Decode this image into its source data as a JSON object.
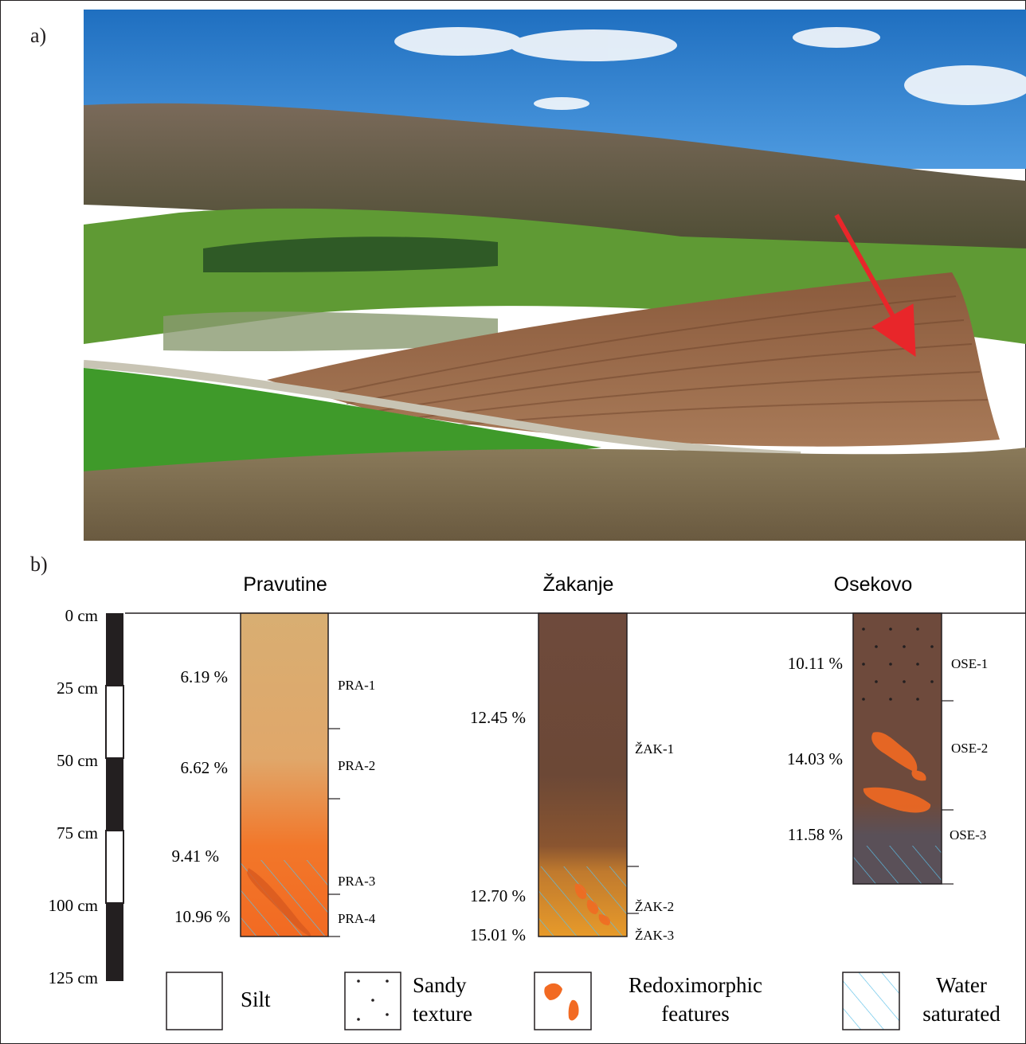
{
  "panel_a": {
    "letter": "a)"
  },
  "panel_b": {
    "letter": "b)",
    "depth_scale": {
      "ticks": [
        "0 cm",
        "25 cm",
        "50 cm",
        "75 cm",
        "100 cm",
        "125 cm"
      ]
    },
    "profiles": [
      {
        "name": "Pravutine",
        "percentages": [
          "6.19 %",
          "6.62 %",
          "9.41 %",
          "10.96 %"
        ],
        "samples": [
          "PRA-1",
          "PRA-2",
          "PRA-3",
          "PRA-4"
        ]
      },
      {
        "name": "Žakanje",
        "percentages": [
          "12.45 %",
          "12.70 %",
          "15.01 %"
        ],
        "samples": [
          "ŽAK-1",
          "ŽAK-2",
          "ŽAK-3"
        ]
      },
      {
        "name": "Osekovo",
        "percentages": [
          "10.11 %",
          "14.03 %",
          "11.58 %"
        ],
        "samples": [
          "OSE-1",
          "OSE-2",
          "OSE-3"
        ]
      }
    ],
    "legend": [
      {
        "label_line1": "Silt",
        "label_line2": ""
      },
      {
        "label_line1": "Sandy",
        "label_line2": "texture"
      },
      {
        "label_line1": "Redoximorphic",
        "label_line2": "features"
      },
      {
        "label_line1": "Water",
        "label_line2": "saturated"
      }
    ],
    "colors": {
      "pravutine_top": "#d8ae72",
      "pravutine_bottom": "#f26a22",
      "zakanje_top": "#6e4a3c",
      "zakanje_bottom": "#e79a2a",
      "osekovo": "#6e4a3c",
      "redox": "#f26a22",
      "water_hatch": "#5bc0e8",
      "ink": "#231f20"
    }
  }
}
